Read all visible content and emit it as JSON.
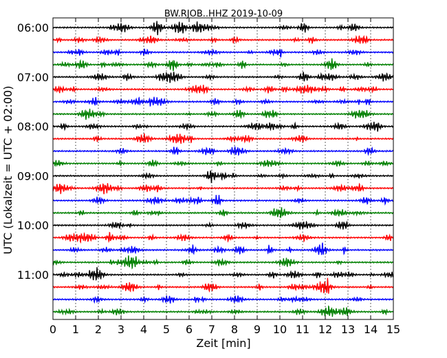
{
  "chart_data": {
    "type": "line",
    "title": "BW.RJOB..HHZ 2019-10-09",
    "xlabel": "Zeit  [min]",
    "ylabel": "UTC (Lokalzeit = UTC + 02:00)",
    "xlim": [
      0,
      15
    ],
    "x_ticks": [
      "0",
      "1",
      "2",
      "3",
      "4",
      "5",
      "6",
      "7",
      "8",
      "9",
      "10",
      "11",
      "12",
      "13",
      "14",
      "15"
    ],
    "y_tick_labels": [
      "06:00",
      "07:00",
      "08:00",
      "09:00",
      "10:00",
      "11:00"
    ],
    "trace_interval_min": 15,
    "trace_count": 24,
    "trace_colors": [
      "#000000",
      "#ff0000",
      "#0000ff",
      "#008000"
    ],
    "grid": "vertical dotted at each minute"
  }
}
